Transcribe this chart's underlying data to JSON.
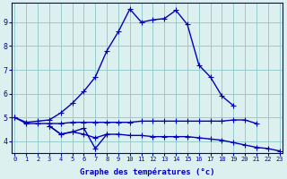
{
  "xlabel": "Graphe des températures (°c)",
  "bg_color": "#ddf0f0",
  "line_color": "#0000bb",
  "grid_color": "#99cccc",
  "hours": [
    0,
    1,
    2,
    3,
    4,
    5,
    6,
    7,
    8,
    9,
    10,
    11,
    12,
    13,
    14,
    15,
    16,
    17,
    18,
    19,
    20,
    21,
    22,
    23
  ],
  "series": {
    "s1": [
      5.0,
      4.8,
      4.85,
      4.9,
      5.2,
      5.6,
      6.1,
      6.7,
      7.8,
      8.6,
      9.55,
      9.0,
      9.1,
      9.15,
      9.5,
      8.9,
      7.2,
      6.7,
      5.9,
      5.5,
      null,
      null,
      null,
      null
    ],
    "s2": [
      5.0,
      4.75,
      4.75,
      4.75,
      4.75,
      4.8,
      4.8,
      4.8,
      4.8,
      4.8,
      4.8,
      4.85,
      4.85,
      4.85,
      4.85,
      4.85,
      4.85,
      4.85,
      4.85,
      4.9,
      4.9,
      4.75,
      null,
      null
    ],
    "s3": [
      null,
      null,
      null,
      4.65,
      4.3,
      4.4,
      4.3,
      4.15,
      4.3,
      4.3,
      4.25,
      4.25,
      4.2,
      4.2,
      4.2,
      4.2,
      4.15,
      4.1,
      4.05,
      3.95,
      3.85,
      3.75,
      3.7,
      3.6
    ],
    "s4": [
      null,
      null,
      null,
      4.65,
      4.3,
      4.4,
      4.55,
      3.7,
      4.3,
      null,
      null,
      null,
      null,
      null,
      null,
      null,
      null,
      null,
      null,
      null,
      null,
      null,
      null,
      null
    ]
  },
  "ylim": [
    3.5,
    9.8
  ],
  "yticks": [
    4,
    5,
    6,
    7,
    8,
    9
  ],
  "xlim": [
    -0.3,
    23.3
  ]
}
